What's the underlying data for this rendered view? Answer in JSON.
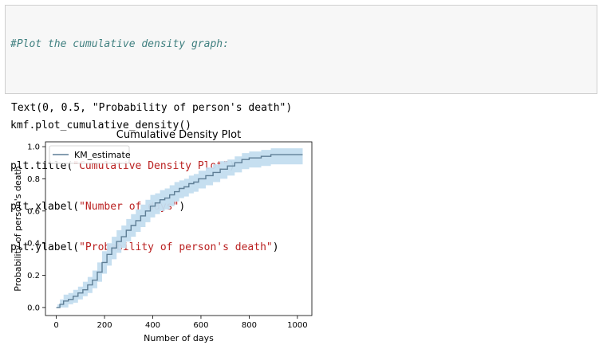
{
  "code_cell": {
    "comment": "#Plot the cumulative density graph:",
    "lines": [
      {
        "prefix": "kmf.plot_cumulative_density()",
        "str": "",
        "suffix": ""
      },
      {
        "prefix": "plt.title(",
        "str": "\"Cumulative Density Plot\"",
        "suffix": ")"
      },
      {
        "prefix": "plt.xlabel(",
        "str": "\"Number of days\"",
        "suffix": ")"
      },
      {
        "prefix": "plt.ylabel(",
        "str": "\"Probability of person's death\"",
        "suffix": ")"
      }
    ]
  },
  "output_text": "Text(0, 0.5, \"Probability of person's death\")",
  "chart_data": {
    "type": "line",
    "title": "Cumulative Density Plot",
    "xlabel": "Number of days",
    "ylabel": "Probability of person's death",
    "xlim": [
      -45,
      1060
    ],
    "ylim": [
      -0.05,
      1.03
    ],
    "xticks": [
      0,
      200,
      400,
      600,
      800,
      1000
    ],
    "yticks": [
      0.0,
      0.2,
      0.4,
      0.6,
      0.8,
      1.0
    ],
    "ytick_labels": [
      "0.0",
      "0.2",
      "0.4",
      "0.6",
      "0.8",
      "1.0"
    ],
    "legend": {
      "position": "top-left",
      "entries": [
        "KM_estimate"
      ]
    },
    "grid": false,
    "series": [
      {
        "name": "KM_estimate",
        "style": "step",
        "color": "#5f7f96",
        "band_color": "#c3ddef",
        "x": [
          0,
          5,
          15,
          30,
          50,
          70,
          90,
          110,
          130,
          150,
          170,
          190,
          210,
          230,
          250,
          270,
          290,
          310,
          330,
          350,
          370,
          390,
          410,
          430,
          450,
          470,
          490,
          510,
          530,
          550,
          570,
          590,
          620,
          650,
          680,
          710,
          740,
          770,
          800,
          850,
          890,
          1022
        ],
        "y": [
          0.0,
          0.0,
          0.02,
          0.04,
          0.05,
          0.07,
          0.09,
          0.11,
          0.14,
          0.17,
          0.22,
          0.28,
          0.33,
          0.37,
          0.41,
          0.44,
          0.48,
          0.51,
          0.54,
          0.57,
          0.6,
          0.63,
          0.65,
          0.67,
          0.68,
          0.7,
          0.72,
          0.74,
          0.75,
          0.77,
          0.78,
          0.8,
          0.82,
          0.84,
          0.86,
          0.88,
          0.9,
          0.92,
          0.93,
          0.94,
          0.95,
          0.95
        ],
        "lower": [
          0.0,
          0.0,
          0.0,
          0.0,
          0.02,
          0.03,
          0.05,
          0.07,
          0.09,
          0.12,
          0.16,
          0.21,
          0.26,
          0.3,
          0.34,
          0.37,
          0.41,
          0.44,
          0.47,
          0.5,
          0.53,
          0.56,
          0.58,
          0.6,
          0.61,
          0.63,
          0.66,
          0.68,
          0.69,
          0.71,
          0.72,
          0.74,
          0.76,
          0.78,
          0.8,
          0.82,
          0.84,
          0.86,
          0.87,
          0.88,
          0.89,
          0.89
        ],
        "upper": [
          0.0,
          0.02,
          0.05,
          0.08,
          0.09,
          0.11,
          0.13,
          0.16,
          0.19,
          0.23,
          0.28,
          0.35,
          0.4,
          0.44,
          0.48,
          0.51,
          0.55,
          0.58,
          0.61,
          0.64,
          0.67,
          0.7,
          0.71,
          0.73,
          0.74,
          0.76,
          0.78,
          0.79,
          0.8,
          0.82,
          0.83,
          0.85,
          0.87,
          0.89,
          0.91,
          0.92,
          0.94,
          0.96,
          0.97,
          0.98,
          0.99,
          0.99
        ]
      }
    ]
  }
}
